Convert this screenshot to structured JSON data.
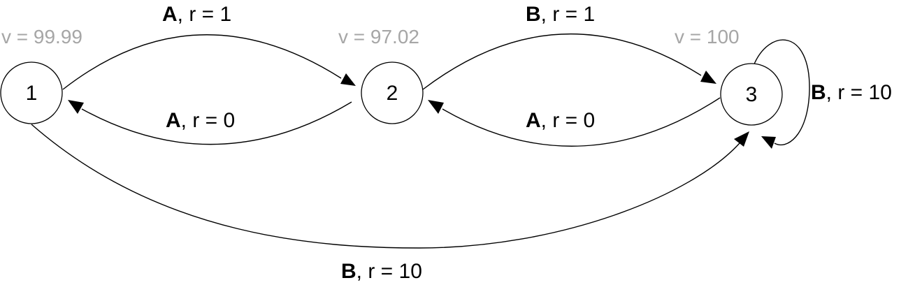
{
  "nodes": [
    {
      "id": "1",
      "label": "1",
      "value": "v = 99.99"
    },
    {
      "id": "2",
      "label": "2",
      "value": "v = 97.02"
    },
    {
      "id": "3",
      "label": "3",
      "value": "v = 100"
    }
  ],
  "edges": [
    {
      "from": "1",
      "to": "2",
      "action": "A",
      "reward": ", r = 1"
    },
    {
      "from": "2",
      "to": "1",
      "action": "A",
      "reward": ", r = 0"
    },
    {
      "from": "2",
      "to": "3",
      "action": "B",
      "reward": ", r = 1"
    },
    {
      "from": "3",
      "to": "2",
      "action": "A",
      "reward": ", r = 0"
    },
    {
      "from": "3",
      "to": "3",
      "action": "B",
      "reward": ", r = 10"
    },
    {
      "from": "1",
      "to": "3",
      "action": "B",
      "reward": ", r = 10"
    }
  ],
  "colors": {
    "stroke": "#000000",
    "value_text": "#a6a6a6",
    "background": "#ffffff"
  }
}
